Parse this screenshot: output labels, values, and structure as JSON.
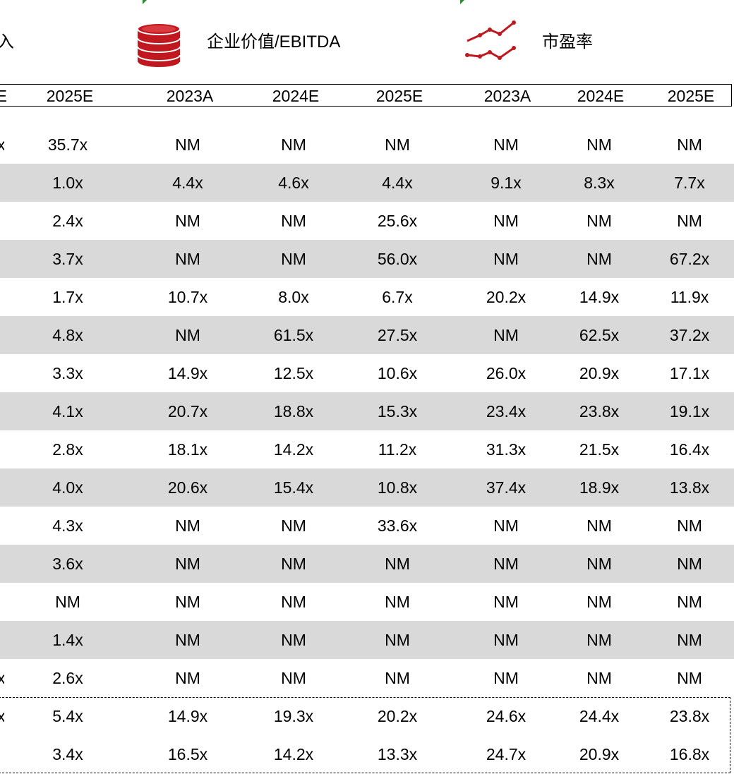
{
  "header": {
    "revenue_label_fragment": "入",
    "ev_ebitda_label": "企业价值/EBITDA",
    "pe_label": "市盈率",
    "ev_icon": "coin-stack-icon",
    "pe_icon": "line-chart-icon",
    "accent_color": "#c0181e"
  },
  "years": {
    "rev_partial": "E",
    "rev_2025": "2025E",
    "ev_2023": "2023A",
    "ev_2024": "2024E",
    "ev_2025": "2025E",
    "pe_2023": "2023A",
    "pe_2024": "2024E",
    "pe_2025": "2025E"
  },
  "rows": [
    {
      "edge": "x",
      "rev_2025": "35.7x",
      "ev_2023": "NM",
      "ev_2024": "NM",
      "ev_2025": "NM",
      "pe_2023": "NM",
      "pe_2024": "NM",
      "pe_2025": "NM"
    },
    {
      "edge": "",
      "rev_2025": "1.0x",
      "ev_2023": "4.4x",
      "ev_2024": "4.6x",
      "ev_2025": "4.4x",
      "pe_2023": "9.1x",
      "pe_2024": "8.3x",
      "pe_2025": "7.7x"
    },
    {
      "edge": "",
      "rev_2025": "2.4x",
      "ev_2023": "NM",
      "ev_2024": "NM",
      "ev_2025": "25.6x",
      "pe_2023": "NM",
      "pe_2024": "NM",
      "pe_2025": "NM"
    },
    {
      "edge": "",
      "rev_2025": "3.7x",
      "ev_2023": "NM",
      "ev_2024": "NM",
      "ev_2025": "56.0x",
      "pe_2023": "NM",
      "pe_2024": "NM",
      "pe_2025": "67.2x"
    },
    {
      "edge": "",
      "rev_2025": "1.7x",
      "ev_2023": "10.7x",
      "ev_2024": "8.0x",
      "ev_2025": "6.7x",
      "pe_2023": "20.2x",
      "pe_2024": "14.9x",
      "pe_2025": "11.9x"
    },
    {
      "edge": "",
      "rev_2025": "4.8x",
      "ev_2023": "NM",
      "ev_2024": "61.5x",
      "ev_2025": "27.5x",
      "pe_2023": "NM",
      "pe_2024": "62.5x",
      "pe_2025": "37.2x"
    },
    {
      "edge": "",
      "rev_2025": "3.3x",
      "ev_2023": "14.9x",
      "ev_2024": "12.5x",
      "ev_2025": "10.6x",
      "pe_2023": "26.0x",
      "pe_2024": "20.9x",
      "pe_2025": "17.1x"
    },
    {
      "edge": "",
      "rev_2025": "4.1x",
      "ev_2023": "20.7x",
      "ev_2024": "18.8x",
      "ev_2025": "15.3x",
      "pe_2023": "23.4x",
      "pe_2024": "23.8x",
      "pe_2025": "19.1x"
    },
    {
      "edge": "",
      "rev_2025": "2.8x",
      "ev_2023": "18.1x",
      "ev_2024": "14.2x",
      "ev_2025": "11.2x",
      "pe_2023": "31.3x",
      "pe_2024": "21.5x",
      "pe_2025": "16.4x"
    },
    {
      "edge": "",
      "rev_2025": "4.0x",
      "ev_2023": "20.6x",
      "ev_2024": "15.4x",
      "ev_2025": "10.8x",
      "pe_2023": "37.4x",
      "pe_2024": "18.9x",
      "pe_2025": "13.8x"
    },
    {
      "edge": "",
      "rev_2025": "4.3x",
      "ev_2023": "NM",
      "ev_2024": "NM",
      "ev_2025": "33.6x",
      "pe_2023": "NM",
      "pe_2024": "NM",
      "pe_2025": "NM"
    },
    {
      "edge": "",
      "rev_2025": "3.6x",
      "ev_2023": "NM",
      "ev_2024": "NM",
      "ev_2025": "NM",
      "pe_2023": "NM",
      "pe_2024": "NM",
      "pe_2025": "NM"
    },
    {
      "edge": "",
      "rev_2025": "NM",
      "ev_2023": "NM",
      "ev_2024": "NM",
      "ev_2025": "NM",
      "pe_2023": "NM",
      "pe_2024": "NM",
      "pe_2025": "NM"
    },
    {
      "edge": "",
      "rev_2025": "1.4x",
      "ev_2023": "NM",
      "ev_2024": "NM",
      "ev_2025": "NM",
      "pe_2023": "NM",
      "pe_2024": "NM",
      "pe_2025": "NM"
    },
    {
      "edge": "x",
      "rev_2025": "2.6x",
      "ev_2023": "NM",
      "ev_2024": "NM",
      "ev_2025": "NM",
      "pe_2023": "NM",
      "pe_2024": "NM",
      "pe_2025": "NM"
    },
    {
      "edge": "x",
      "rev_2025": "5.4x",
      "ev_2023": "14.9x",
      "ev_2024": "19.3x",
      "ev_2025": "20.2x",
      "pe_2023": "24.6x",
      "pe_2024": "24.4x",
      "pe_2025": "23.8x"
    },
    {
      "edge": "",
      "rev_2025": "3.4x",
      "ev_2023": "16.5x",
      "ev_2024": "14.2x",
      "ev_2025": "13.3x",
      "pe_2023": "24.7x",
      "pe_2024": "20.9x",
      "pe_2025": "16.8x"
    }
  ]
}
